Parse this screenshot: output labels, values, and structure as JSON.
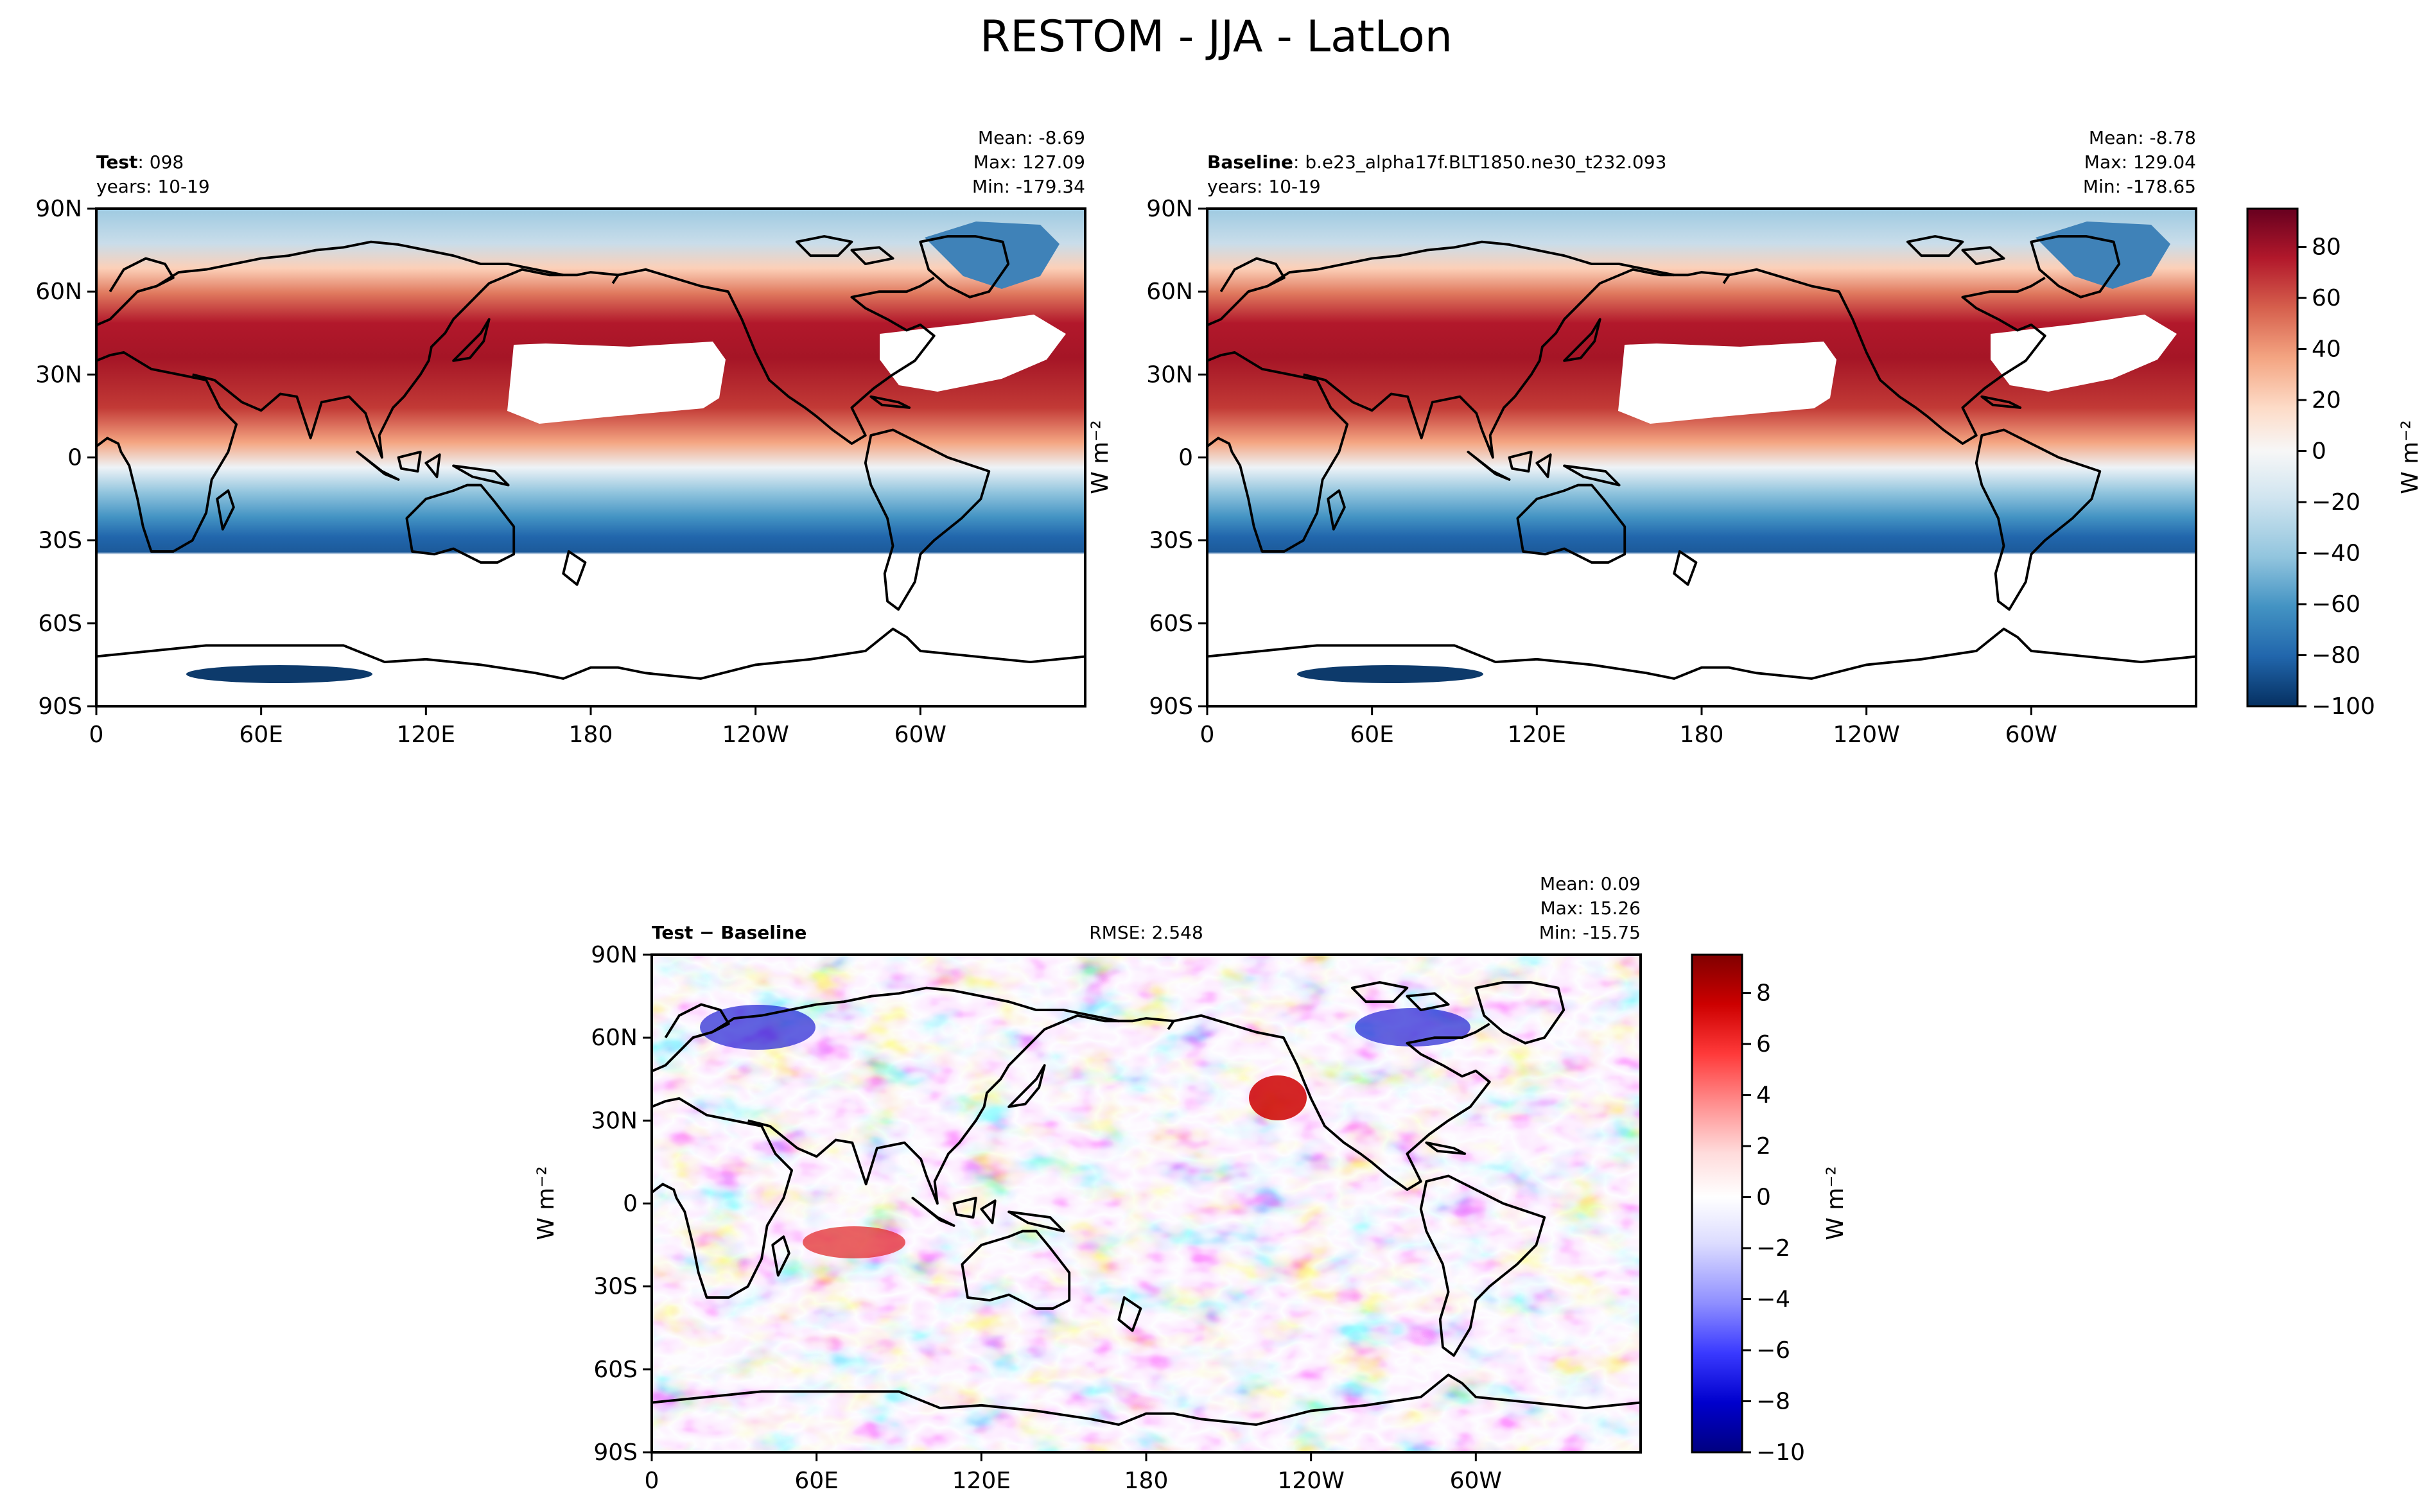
{
  "figure": {
    "title": "RESTOM - JJA - LatLon"
  },
  "chart_data": [
    {
      "type": "heatmap",
      "panel": "test",
      "title_bold": "Test",
      "title_rest": ": 098",
      "years": "years: 10-19",
      "stats": {
        "mean": "Mean: -8.69",
        "max": "Max: 127.09",
        "min": "Min: -179.34"
      },
      "xlabel": "",
      "ylabel": "W m⁻²",
      "xticks": [
        "0",
        "60E",
        "120E",
        "180",
        "120W",
        "60W"
      ],
      "yticks": [
        "90N",
        "60N",
        "30N",
        "0",
        "30S",
        "60S",
        "90S"
      ],
      "xlim": [
        0,
        360
      ],
      "ylim": [
        -90,
        90
      ],
      "colormap": "RdBu_r",
      "clim": [
        -100,
        95
      ]
    },
    {
      "type": "heatmap",
      "panel": "baseline",
      "title_bold": "Baseline",
      "title_rest": ": b.e23_alpha17f.BLT1850.ne30_t232.093",
      "years": "years: 10-19",
      "stats": {
        "mean": "Mean: -8.78",
        "max": "Max: 129.04",
        "min": "Min: -178.65"
      },
      "xticks": [
        "0",
        "60E",
        "120E",
        "180",
        "120W",
        "60W"
      ],
      "yticks": [
        "90N",
        "60N",
        "30N",
        "0",
        "30S",
        "60S",
        "90S"
      ],
      "xlim": [
        0,
        360
      ],
      "ylim": [
        -90,
        90
      ],
      "colorbar": {
        "label": "W m⁻²",
        "ticks": [
          "80",
          "60",
          "40",
          "20",
          "0",
          "−20",
          "−40",
          "−60",
          "−80",
          "−100"
        ],
        "tick_values": [
          80,
          60,
          40,
          20,
          0,
          -20,
          -40,
          -60,
          -80,
          -100
        ],
        "range": [
          -100,
          95
        ],
        "colors": [
          "#053061",
          "#2166ac",
          "#4393c3",
          "#92c5de",
          "#d1e5f0",
          "#f7f7f7",
          "#fddbc7",
          "#f4a582",
          "#d6604d",
          "#b2182b",
          "#67001f"
        ]
      }
    },
    {
      "type": "heatmap",
      "panel": "diff",
      "title_bold": "Test − Baseline",
      "rmse": "RMSE: 2.548",
      "stats": {
        "mean": "Mean:  0.09",
        "max": "Max: 15.26",
        "min": "Min: -15.75"
      },
      "ylabel": "W m⁻²",
      "xticks": [
        "0",
        "60E",
        "120E",
        "180",
        "120W",
        "60W"
      ],
      "yticks": [
        "90N",
        "60N",
        "30N",
        "0",
        "30S",
        "60S",
        "90S"
      ],
      "xlim": [
        0,
        360
      ],
      "ylim": [
        -90,
        90
      ],
      "colorbar": {
        "label": "W m⁻²",
        "ticks": [
          "8",
          "6",
          "4",
          "2",
          "0",
          "−2",
          "−4",
          "−6",
          "−8",
          "−10"
        ],
        "tick_values": [
          8,
          6,
          4,
          2,
          0,
          -2,
          -4,
          -6,
          -8,
          -10
        ],
        "range": [
          -10,
          9.5
        ],
        "colors": [
          "#000080",
          "#0000cd",
          "#3a3aff",
          "#8f8fff",
          "#dcdcff",
          "#ffffff",
          "#ffdcdc",
          "#ff8f8f",
          "#ff3a3a",
          "#cd0000",
          "#800000"
        ]
      }
    }
  ]
}
